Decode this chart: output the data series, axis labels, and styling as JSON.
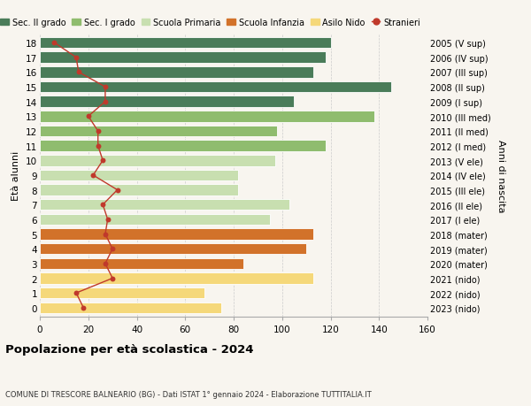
{
  "ages": [
    18,
    17,
    16,
    15,
    14,
    13,
    12,
    11,
    10,
    9,
    8,
    7,
    6,
    5,
    4,
    3,
    2,
    1,
    0
  ],
  "right_labels": [
    "2005 (V sup)",
    "2006 (IV sup)",
    "2007 (III sup)",
    "2008 (II sup)",
    "2009 (I sup)",
    "2010 (III med)",
    "2011 (II med)",
    "2012 (I med)",
    "2013 (V ele)",
    "2014 (IV ele)",
    "2015 (III ele)",
    "2016 (II ele)",
    "2017 (I ele)",
    "2018 (mater)",
    "2019 (mater)",
    "2020 (mater)",
    "2021 (nido)",
    "2022 (nido)",
    "2023 (nido)"
  ],
  "bar_values": [
    120,
    118,
    113,
    145,
    105,
    138,
    98,
    118,
    97,
    82,
    82,
    103,
    95,
    113,
    110,
    84,
    113,
    68,
    75
  ],
  "bar_colors": [
    "#4a7c59",
    "#4a7c59",
    "#4a7c59",
    "#4a7c59",
    "#4a7c59",
    "#8fbc6e",
    "#8fbc6e",
    "#8fbc6e",
    "#c8dfb0",
    "#c8dfb0",
    "#c8dfb0",
    "#c8dfb0",
    "#c8dfb0",
    "#d2722a",
    "#d2722a",
    "#d2722a",
    "#f5d87a",
    "#f5d87a",
    "#f5d87a"
  ],
  "stranieri_values": [
    6,
    15,
    16,
    27,
    27,
    20,
    24,
    24,
    26,
    22,
    32,
    26,
    28,
    27,
    30,
    27,
    30,
    15,
    18
  ],
  "xlim": [
    0,
    160
  ],
  "xticks": [
    0,
    20,
    40,
    60,
    80,
    100,
    120,
    140,
    160
  ],
  "ylabel": "Età alunni",
  "right_ylabel": "Anni di nascita",
  "title": "Popolazione per età scolastica - 2024",
  "subtitle": "COMUNE DI TRESCORE BALNEARIO (BG) - Dati ISTAT 1° gennaio 2024 - Elaborazione TUTTITALIA.IT",
  "legend_labels": [
    "Sec. II grado",
    "Sec. I grado",
    "Scuola Primaria",
    "Scuola Infanzia",
    "Asilo Nido",
    "Stranieri"
  ],
  "legend_colors": [
    "#4a7c59",
    "#8fbc6e",
    "#c8dfb0",
    "#d2722a",
    "#f5d87a",
    "#c0392b"
  ],
  "stranieri_color": "#c0392b",
  "bg_color": "#f8f5ef",
  "bar_height": 0.75
}
